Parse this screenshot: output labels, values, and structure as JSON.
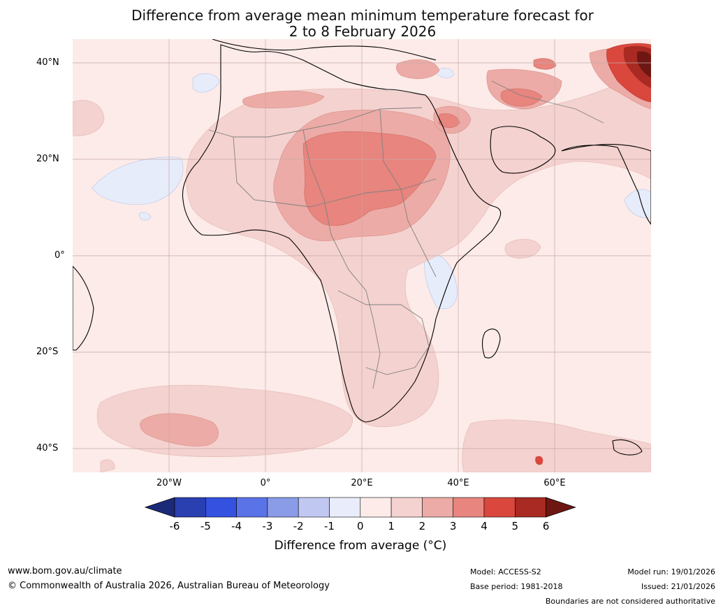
{
  "title": {
    "line1": "Difference from average mean minimum temperature forecast for",
    "line2": "2 to 8 February 2026"
  },
  "map": {
    "region": "Africa",
    "lat_labels": [
      "40°N",
      "20°N",
      "0°",
      "20°S",
      "40°S"
    ],
    "lon_labels": [
      "20°W",
      "0°",
      "20°E",
      "40°E",
      "60°E"
    ],
    "lat_values": [
      40,
      20,
      0,
      -20,
      -40
    ],
    "lon_values": [
      -20,
      0,
      20,
      40,
      60
    ],
    "extent": {
      "lon_min": -40,
      "lon_max": 80,
      "lat_min": -45,
      "lat_max": 45
    }
  },
  "colorbar": {
    "label": "Difference from average ($^\\circ$C)",
    "display_label": "Difference from average (°C)",
    "ticks": [
      "-6",
      "-5",
      "-4",
      "-3",
      "-2",
      "-1",
      "0",
      "1",
      "2",
      "3",
      "4",
      "5",
      "6"
    ],
    "colors": [
      "#1b2a78",
      "#2a3fb0",
      "#3451e0",
      "#5a73e6",
      "#8a9be8",
      "#c0c8f2",
      "#e9edfb",
      "#fcebe8",
      "#f4d2cf",
      "#ecaba6",
      "#e7857e",
      "#d9473d",
      "#a82a22",
      "#6e1712"
    ]
  },
  "footer": {
    "website": "www.bom.gov.au/climate",
    "copyright": "© Commonwealth of Australia 2026, Australian Bureau of Meteorology",
    "model": "Model: ACCESS-S2",
    "base_period": "Base period: 1981-2018",
    "model_run": "Model run: 19/01/2026",
    "issued": "Issued: 21/01/2026",
    "disclaimer": "Boundaries are not considered authoritative"
  }
}
